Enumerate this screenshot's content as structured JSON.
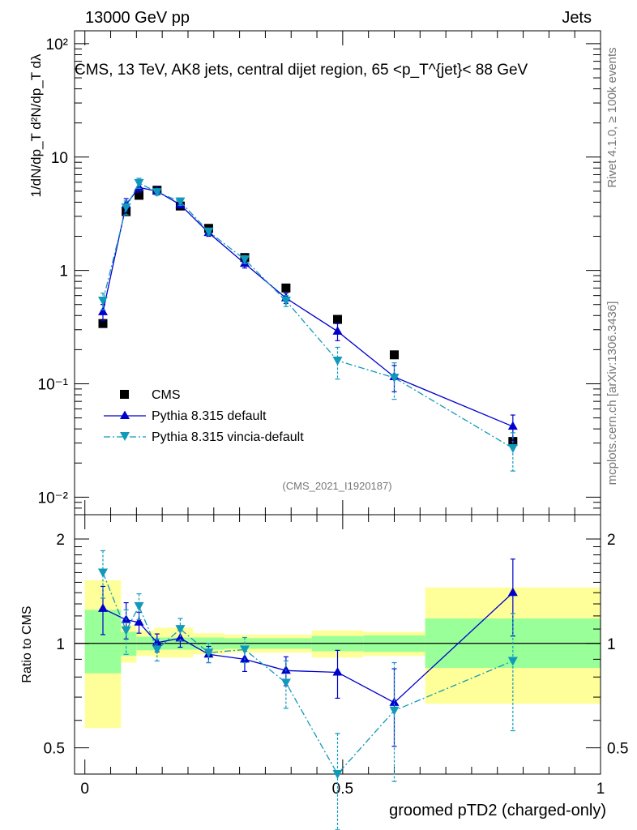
{
  "header": {
    "left": "13000 GeV pp",
    "right": "Jets"
  },
  "side_labels": {
    "rivet": "Rivet 4.1.0, ≥ 100k events",
    "mcplots": "mcplots.cern.ch [arXiv:1306.3436]"
  },
  "chart_data": [
    {
      "type": "scatter",
      "title": "CMS, 13 TeV, AK8 jets, central dijet region, 65 <p_T^{jet}< 88 GeV",
      "ylabel": "1/dN/dp_T d²N/dp_T dλ",
      "yscale": "log",
      "ylim": [
        0.007,
        130
      ],
      "xlim": [
        -0.02,
        1.0
      ],
      "watermark": "(CMS_2021_I1920187)",
      "ytick_labels": [
        "10⁻²",
        "10⁻¹",
        "1",
        "10",
        "10²"
      ],
      "legend_position": "lower-left",
      "series": [
        {
          "name": "CMS",
          "color": "#000000",
          "marker": "square",
          "x": [
            0.035,
            0.08,
            0.105,
            0.14,
            0.185,
            0.24,
            0.31,
            0.39,
            0.49,
            0.6,
            0.83
          ],
          "y": [
            0.34,
            3.3,
            4.6,
            5.1,
            3.7,
            2.35,
            1.3,
            0.7,
            0.37,
            0.18,
            0.031
          ]
        },
        {
          "name": "Pythia 8.315 default",
          "color": "#0000cc",
          "marker": "triangle-up",
          "line": "solid",
          "x": [
            0.035,
            0.08,
            0.105,
            0.14,
            0.185,
            0.24,
            0.31,
            0.39,
            0.49,
            0.6,
            0.83
          ],
          "y": [
            0.43,
            3.8,
            5.4,
            5.0,
            3.8,
            2.15,
            1.15,
            0.57,
            0.29,
            0.115,
            0.042
          ],
          "err": [
            0.07,
            0.5,
            0.5,
            0.3,
            0.25,
            0.15,
            0.1,
            0.06,
            0.05,
            0.03,
            0.011
          ]
        },
        {
          "name": "Pythia 8.315 vincia-default",
          "color": "#1199bb",
          "marker": "triangle-down",
          "line": "dashdot",
          "x": [
            0.035,
            0.08,
            0.105,
            0.14,
            0.185,
            0.24,
            0.31,
            0.39,
            0.49,
            0.6,
            0.83
          ],
          "y": [
            0.54,
            3.6,
            5.9,
            4.9,
            4.05,
            2.2,
            1.25,
            0.54,
            0.16,
            0.113,
            0.027
          ],
          "err": [
            0.09,
            0.5,
            0.6,
            0.3,
            0.3,
            0.15,
            0.1,
            0.06,
            0.05,
            0.04,
            0.01
          ]
        }
      ]
    },
    {
      "type": "scatter",
      "ylabel": "Ratio to CMS",
      "xlabel": "groomed pTD2 (charged-only)",
      "ylim": [
        0.42,
        2.35
      ],
      "xlim": [
        -0.02,
        1.0
      ],
      "ytick_labels": [
        "0.5",
        "1",
        "2"
      ],
      "xtick_labels": [
        "0",
        "0.5",
        "1"
      ],
      "reference": 1.0,
      "bands": {
        "edges": [
          0.0,
          0.07,
          0.1,
          0.135,
          0.21,
          0.27,
          0.44,
          0.54,
          0.66,
          1.0
        ],
        "inner_lo": [
          0.82,
          0.92,
          0.955,
          0.96,
          0.96,
          0.965,
          0.95,
          0.945,
          0.85
        ],
        "inner_hi": [
          1.25,
          1.08,
          1.045,
          1.04,
          1.04,
          1.035,
          1.05,
          1.055,
          1.18
        ],
        "outer_lo": [
          0.57,
          0.88,
          0.92,
          0.91,
          0.93,
          0.94,
          0.91,
          0.92,
          0.67
        ],
        "outer_hi": [
          1.52,
          1.13,
          1.09,
          1.11,
          1.07,
          1.06,
          1.09,
          1.08,
          1.45
        ]
      },
      "series": [
        {
          "name": "Pythia 8.315 default",
          "color": "#0000cc",
          "marker": "triangle-up",
          "line": "solid",
          "x": [
            0.035,
            0.08,
            0.105,
            0.14,
            0.185,
            0.24,
            0.31,
            0.39,
            0.49,
            0.6,
            0.83
          ],
          "y": [
            1.26,
            1.17,
            1.15,
            1.005,
            1.035,
            0.93,
            0.9,
            0.835,
            0.825,
            0.675,
            1.4
          ],
          "err": [
            0.2,
            0.14,
            0.08,
            0.06,
            0.06,
            0.05,
            0.07,
            0.08,
            0.13,
            0.17,
            0.35
          ]
        },
        {
          "name": "Pythia 8.315 vincia-default",
          "color": "#1199bb",
          "marker": "triangle-down",
          "line": "dashdot",
          "x": [
            0.035,
            0.08,
            0.105,
            0.14,
            0.185,
            0.24,
            0.31,
            0.39,
            0.49,
            0.6,
            0.83
          ],
          "y": [
            1.6,
            1.09,
            1.28,
            0.96,
            1.1,
            0.94,
            0.96,
            0.77,
            0.42,
            0.64,
            0.89
          ],
          "err": [
            0.25,
            0.16,
            0.11,
            0.07,
            0.08,
            0.06,
            0.08,
            0.12,
            0.13,
            0.24,
            0.33
          ]
        }
      ]
    }
  ]
}
